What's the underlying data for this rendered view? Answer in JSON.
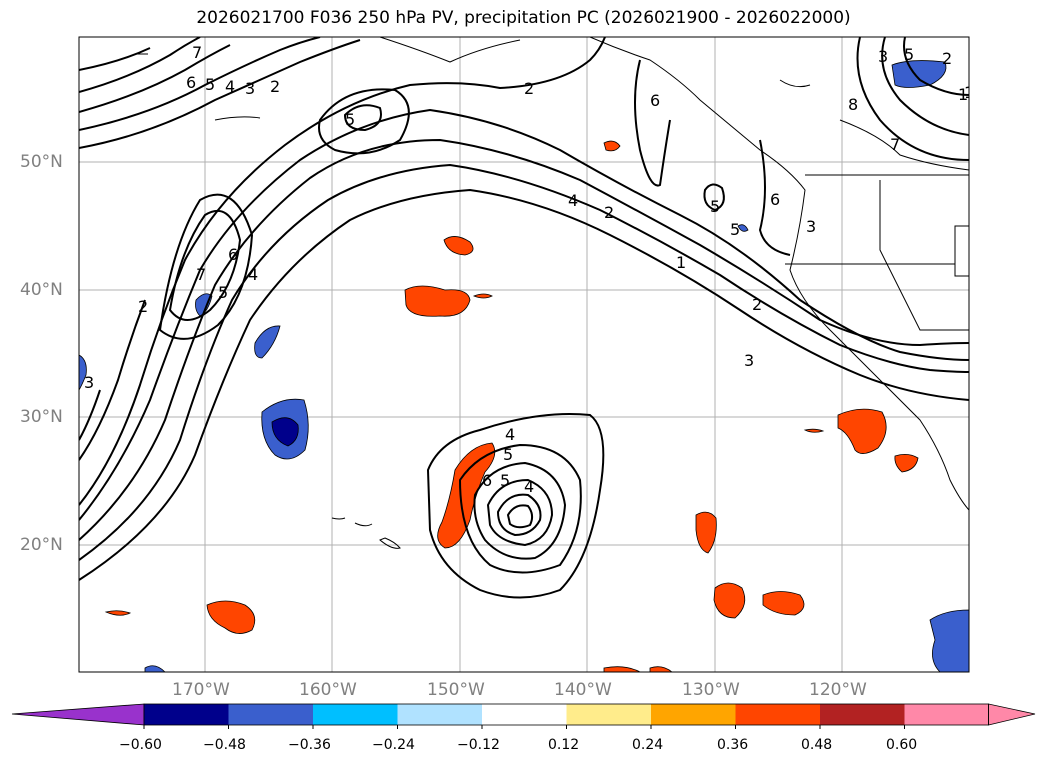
{
  "title": "2026021700 F036 250 hPa PV, precipitation PC (2026021900 - 2026022000)",
  "lat_labels": [
    "50°N",
    "40°N",
    "30°N",
    "20°N"
  ],
  "lon_labels": [
    "170°W",
    "160°W",
    "150°W",
    "140°W",
    "130°W",
    "120°W"
  ],
  "colorbar": {
    "ticks": [
      "−0.60",
      "−0.48",
      "−0.36",
      "−0.24",
      "−0.12",
      "0.12",
      "0.24",
      "0.36",
      "0.48",
      "0.60"
    ],
    "colors": [
      "#9932cc",
      "#00008b",
      "#3a5fcd",
      "#00bfff",
      "#b0e2ff",
      "#ffffff",
      "#ffec8b",
      "#ffa500",
      "#ff4500",
      "#b22222",
      "#ff88a8"
    ]
  },
  "contour_labels": [
    "7",
    "6",
    "5",
    "4",
    "3",
    "2",
    "5",
    "2",
    "6",
    "1",
    "5",
    "2",
    "3",
    "7",
    "6",
    "5",
    "4",
    "3",
    "7",
    "5",
    "6",
    "4",
    "2",
    "1",
    "2",
    "3",
    "4",
    "5",
    "6",
    "5",
    "4",
    "3",
    "2",
    "1",
    "8",
    "5"
  ]
}
